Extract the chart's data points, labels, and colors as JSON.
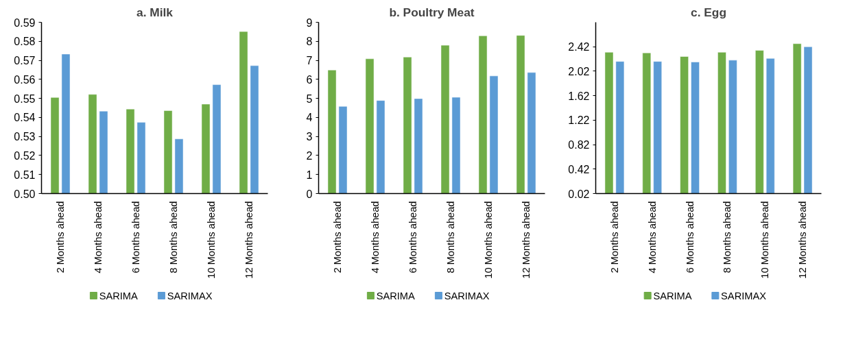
{
  "chart_data": [
    {
      "type": "bar",
      "title": "a. Milk",
      "categories": [
        "2 Months ahead",
        "4 Months ahead",
        "6 Months ahead",
        "8 Months ahead",
        "10 Months ahead",
        "12 Months ahead"
      ],
      "series": [
        {
          "name": "SARIMA",
          "color": "#70ad47",
          "values": [
            0.5505,
            0.5521,
            0.5444,
            0.5436,
            0.547,
            0.5851
          ]
        },
        {
          "name": "SARIMAX",
          "color": "#5b9bd5",
          "values": [
            0.5733,
            0.5433,
            0.5374,
            0.5287,
            0.5572,
            0.5672
          ]
        }
      ],
      "ylim": [
        0.5,
        0.59
      ],
      "yticks": [
        {
          "value": 0.5,
          "label": "0.50"
        },
        0.51,
        0.52,
        0.53,
        0.54,
        0.55,
        0.56,
        0.57,
        0.58,
        0.59
      ],
      "grid": false,
      "legend": "bottom"
    },
    {
      "type": "bar",
      "title": "b. Poultry Meat",
      "categories": [
        "2 Months ahead",
        "4 Months ahead",
        "6 Months ahead",
        "8 Months ahead",
        "10 Months ahead",
        "12 Months ahead"
      ],
      "series": [
        {
          "name": "SARIMA",
          "color": "#70ad47",
          "values": [
            6.49,
            7.08,
            7.17,
            7.79,
            8.29,
            8.31
          ]
        },
        {
          "name": "SARIMAX",
          "color": "#5b9bd5",
          "values": [
            4.58,
            4.89,
            4.99,
            5.06,
            6.18,
            6.36
          ]
        }
      ],
      "ylim": [
        0,
        9
      ],
      "yticks": [
        0,
        1,
        2,
        3,
        4,
        5,
        6,
        7,
        8,
        9
      ],
      "grid": false,
      "legend": "bottom"
    },
    {
      "type": "bar",
      "title": "c. Egg",
      "categories": [
        "2 Months ahead",
        "4 Months ahead",
        "6 Months ahead",
        "8 Months ahead",
        "10 Months ahead",
        "12 Months ahead"
      ],
      "series": [
        {
          "name": "SARIMA",
          "color": "#70ad47",
          "values": [
            2.33,
            2.32,
            2.26,
            2.33,
            2.36,
            2.47
          ]
        },
        {
          "name": "SARIMAX",
          "color": "#5b9bd5",
          "values": [
            2.18,
            2.18,
            2.17,
            2.2,
            2.23,
            2.42
          ]
        }
      ],
      "ylim": [
        0.02,
        2.82
      ],
      "yticks": [
        0.02,
        0.42,
        0.82,
        1.22,
        1.62,
        2.02,
        2.42
      ],
      "grid": false,
      "legend": "bottom"
    }
  ]
}
